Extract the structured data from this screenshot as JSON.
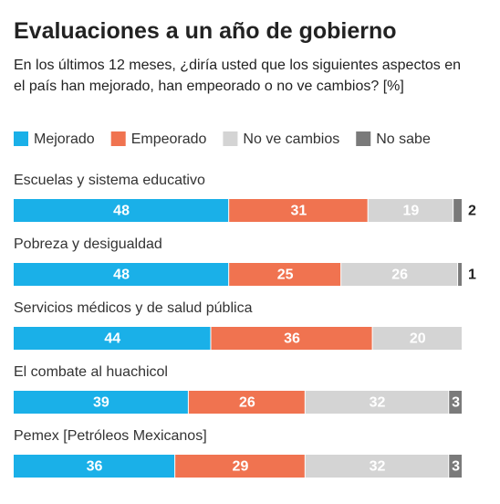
{
  "chart_data": {
    "type": "stacked-bar",
    "orientation": "horizontal",
    "title": "Evaluaciones a un año de gobierno",
    "subtitle": "En los últimos 12 meses, ¿diría usted que los siguientes aspectos en el país han mejorado, han empeorado o no ve cambios? [%]",
    "categories": [
      "Escuelas y sistema educativo",
      "Pobreza y desigualdad",
      "Servicios médicos y de salud pública",
      "El combate al huachicol",
      "Pemex [Petróleos Mexicanos]"
    ],
    "series": [
      {
        "name": "Mejorado",
        "color": "#1ab0e8",
        "values": [
          48,
          48,
          44,
          39,
          36
        ]
      },
      {
        "name": "Empeorado",
        "color": "#f07350",
        "values": [
          31,
          25,
          36,
          26,
          29
        ]
      },
      {
        "name": "No ve cambios",
        "color": "#d4d4d4",
        "values": [
          19,
          26,
          20,
          32,
          32
        ]
      },
      {
        "name": "No sabe",
        "color": "#7a7a7a",
        "values": [
          2,
          1,
          null,
          3,
          3
        ]
      }
    ]
  }
}
